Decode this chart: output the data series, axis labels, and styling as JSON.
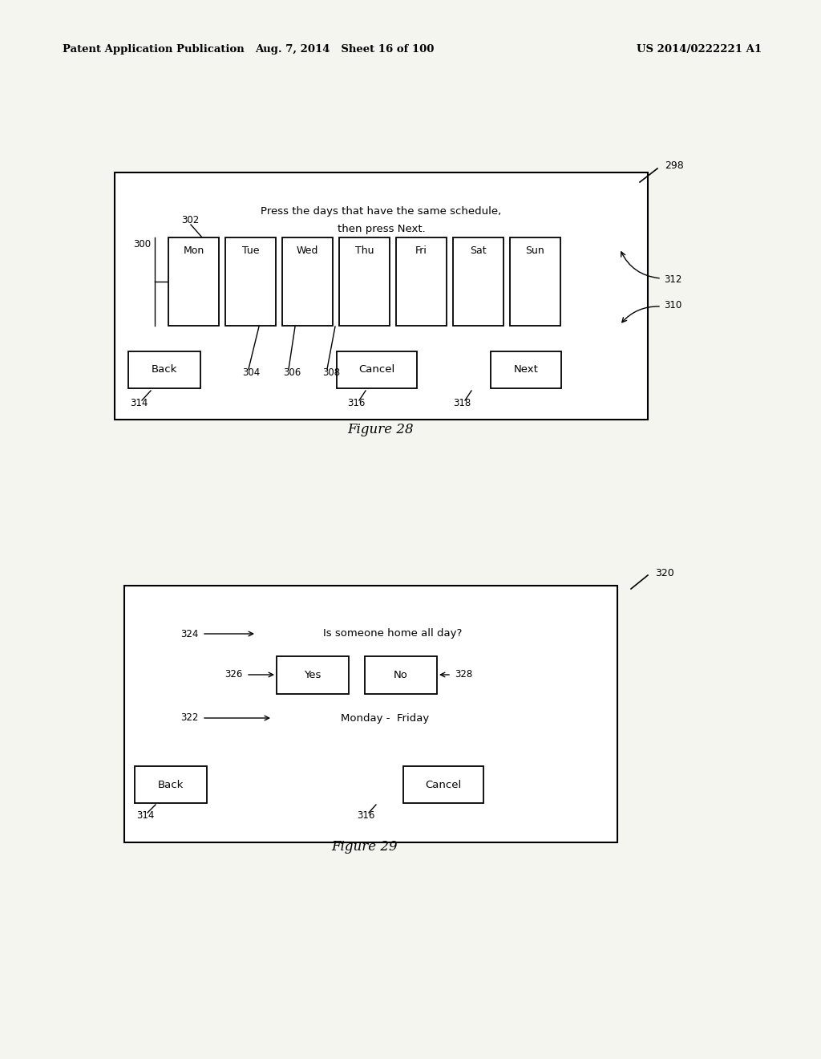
{
  "bg_color": "#f5f5f0",
  "header_left": "Patent Application Publication",
  "header_mid": "Aug. 7, 2014   Sheet 16 of 100",
  "header_right": "US 2014/0222221 A1",
  "fig28_title": "Figure 28",
  "fig29_title": "Figure 29",
  "fig28_text_line1": "Press the days that have the same schedule,",
  "fig28_text_line2": "then press Next.",
  "fig28_days": [
    "Mon",
    "Tue",
    "Wed",
    "Thu",
    "Fri",
    "Sat",
    "Sun"
  ],
  "fig29_question": "Is someone home all day?",
  "fig29_period": "Monday -  Friday"
}
